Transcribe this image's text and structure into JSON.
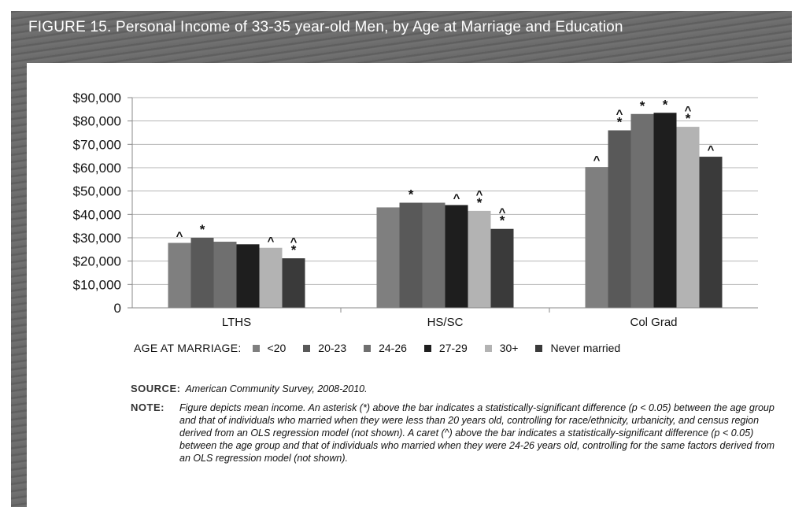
{
  "figure": {
    "title": "FIGURE 15.  Personal Income of 33-35 year-old Men, by Age at Marriage and Education"
  },
  "legend": {
    "title": "AGE AT MARRIAGE:"
  },
  "source": {
    "label": "SOURCE:",
    "text": "American Community Survey, 2008-2010."
  },
  "note": {
    "label": "NOTE:",
    "text": "Figure depicts mean income. An asterisk (*) above the bar indicates a statistically-significant difference (p < 0.05) between the age group and that of individuals who married when they were less than 20 years old, controlling for race/ethnicity, urbanicity, and census region derived from an OLS regression model (not shown). A caret (^) above the bar indicates a statistically-significant difference (p < 0.05) between the age group and that of individuals who married when they were 24-26 years old, controlling for the same factors derived from an OLS regression model (not shown)."
  },
  "chart_data": {
    "type": "bar",
    "title": "Personal Income of 33-35 year-old Men, by Age at Marriage and Education",
    "xlabel": "",
    "ylabel": "",
    "categories": [
      "LTHS",
      "HS/SC",
      "Col Grad"
    ],
    "ylim": [
      0,
      90000
    ],
    "yticks": [
      "0",
      "$10,000",
      "$20,000",
      "$30,000",
      "$40,000",
      "$50,000",
      "$60,000",
      "$70,000",
      "$80,000",
      "$90,000"
    ],
    "grid": true,
    "legend_position": "bottom",
    "series": [
      {
        "name": "<20",
        "color": "#7f7f7f",
        "values": [
          27800,
          43000,
          60300
        ],
        "marks": [
          "^",
          "",
          "^"
        ]
      },
      {
        "name": "20-23",
        "color": "#595959",
        "values": [
          30000,
          45000,
          76000
        ],
        "marks": [
          "*",
          "*",
          "^*"
        ]
      },
      {
        "name": "24-26",
        "color": "#6f6f6f",
        "values": [
          28300,
          45000,
          83000
        ],
        "marks": [
          "",
          "",
          "*"
        ]
      },
      {
        "name": "27-29",
        "color": "#1e1e1e",
        "values": [
          27200,
          44000,
          83500
        ],
        "marks": [
          "",
          "^",
          "*"
        ]
      },
      {
        "name": "30+",
        "color": "#b3b3b3",
        "values": [
          25700,
          41500,
          77500
        ],
        "marks": [
          "^",
          "^*",
          "^*"
        ]
      },
      {
        "name": "Never married",
        "color": "#3a3a3a",
        "values": [
          21200,
          33800,
          64700
        ],
        "marks": [
          "^*",
          "^*",
          "^"
        ]
      }
    ]
  }
}
